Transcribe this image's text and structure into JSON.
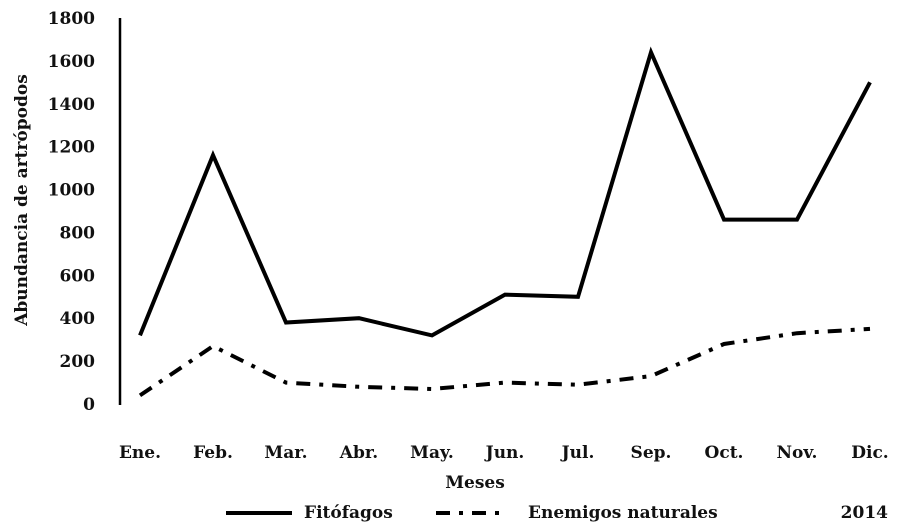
{
  "chart_data": {
    "type": "line",
    "categories": [
      "Ene.",
      "Feb.",
      "Mar.",
      "Abr.",
      "May.",
      "Jun.",
      "Jul.",
      "Sep.",
      "Oct.",
      "Nov.",
      "Dic."
    ],
    "series": [
      {
        "name": "Fitófagos",
        "values": [
          320,
          1160,
          380,
          400,
          320,
          510,
          500,
          1640,
          860,
          860,
          1500
        ],
        "style": "solid",
        "color": "#000000"
      },
      {
        "name": "Enemigos naturales",
        "values": [
          40,
          270,
          100,
          80,
          70,
          100,
          90,
          130,
          280,
          330,
          350
        ],
        "style": "dash-dot",
        "color": "#000000"
      }
    ],
    "title": "",
    "xlabel": "Meses",
    "ylabel": "Abundancia de artrópodos",
    "ylim": [
      0,
      1800
    ],
    "yticks": [
      "0",
      "200",
      "400",
      "600",
      "800",
      "1000",
      "1200",
      "1400",
      "1600",
      "1800"
    ],
    "grid": false,
    "legend_position": "bottom",
    "annotation": "2014"
  }
}
